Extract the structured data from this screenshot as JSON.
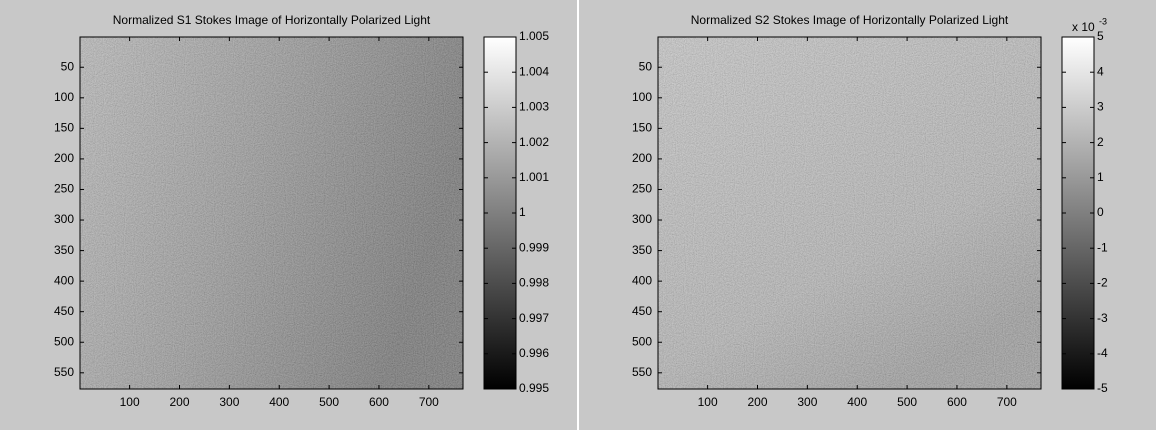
{
  "chart_data": [
    {
      "type": "image",
      "title": "Normalized S1 Stokes Image of Horizontally Polarized Light",
      "xlim": [
        0.5,
        768.5
      ],
      "xticks": [
        100,
        200,
        300,
        400,
        500,
        600,
        700
      ],
      "ylim": [
        0.5,
        576.5
      ],
      "yticks": [
        50,
        100,
        150,
        200,
        250,
        300,
        350,
        400,
        450,
        500,
        550
      ],
      "y_reversed": true,
      "colormap": "gray",
      "clim": [
        0.995,
        1.005
      ],
      "cticks": [
        0.995,
        0.996,
        0.997,
        0.998,
        0.999,
        1,
        1.001,
        1.002,
        1.003,
        1.004,
        1.005
      ]
    },
    {
      "type": "image",
      "title": "Normalized S2 Stokes Image of Horizontally Polarized Light",
      "xlim": [
        0.5,
        768.5
      ],
      "xticks": [
        100,
        200,
        300,
        400,
        500,
        600,
        700
      ],
      "ylim": [
        0.5,
        576.5
      ],
      "yticks": [
        50,
        100,
        150,
        200,
        250,
        300,
        350,
        400,
        450,
        500,
        550
      ],
      "y_reversed": true,
      "colormap": "gray",
      "clim": [
        -5,
        5
      ],
      "cticks": [
        -5,
        -4,
        -3,
        -2,
        -1,
        0,
        1,
        2,
        3,
        4,
        5
      ],
      "cscale_label": "x 10",
      "cscale_exponent": "-3"
    }
  ]
}
